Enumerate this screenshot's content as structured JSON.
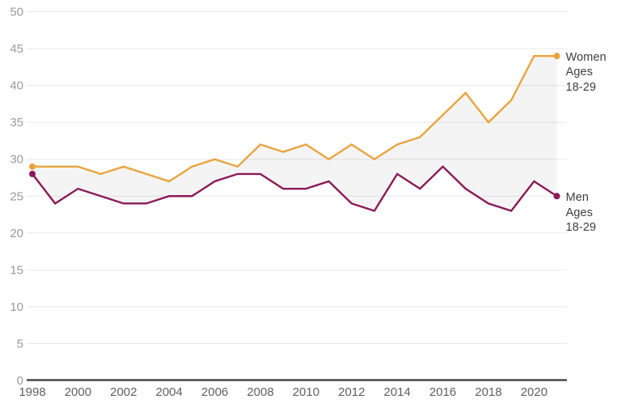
{
  "chart_data": {
    "type": "line",
    "x": [
      1998,
      1999,
      2000,
      2001,
      2002,
      2003,
      2004,
      2005,
      2006,
      2007,
      2008,
      2009,
      2010,
      2011,
      2012,
      2013,
      2014,
      2015,
      2016,
      2017,
      2018,
      2019,
      2020,
      2021
    ],
    "series": [
      {
        "name": "Women Ages 18-29",
        "label_lines": "Women\nAges\n18-29",
        "color": "#E9A43F",
        "values": [
          29,
          29,
          29,
          28,
          29,
          28,
          27,
          29,
          30,
          29,
          32,
          31,
          32,
          30,
          32,
          30,
          32,
          33,
          36,
          39,
          35,
          38,
          44,
          44
        ]
      },
      {
        "name": "Men Ages 18-29",
        "label_lines": "Men\nAges\n18-29",
        "color": "#8B1A58",
        "values": [
          28,
          24,
          26,
          25,
          24,
          24,
          25,
          25,
          27,
          28,
          28,
          26,
          26,
          27,
          24,
          23,
          28,
          26,
          29,
          26,
          24,
          23,
          27,
          25
        ]
      }
    ],
    "ylim": [
      0,
      50
    ],
    "yticks": [
      0,
      5,
      10,
      15,
      20,
      25,
      30,
      35,
      40,
      45,
      50
    ],
    "xticks": [
      1998,
      2000,
      2002,
      2004,
      2006,
      2008,
      2010,
      2012,
      2014,
      2016,
      2018,
      2020
    ],
    "grid": true,
    "fill_between": true,
    "legend_position": "end-of-line-labels-right",
    "endpoint_dots": "first-and-last"
  },
  "colors": {
    "women_line": "#E9A43F",
    "men_line": "#8B1A58",
    "between_fill": "rgba(128,128,128,0.09)",
    "gridline": "#E8E8E8",
    "axis_line": "#4A4A4A",
    "y_tick_text": "#9A9A9A",
    "x_tick_text": "#606060",
    "end_label_text": "#3E3E3E",
    "background": "#FFFFFF"
  }
}
